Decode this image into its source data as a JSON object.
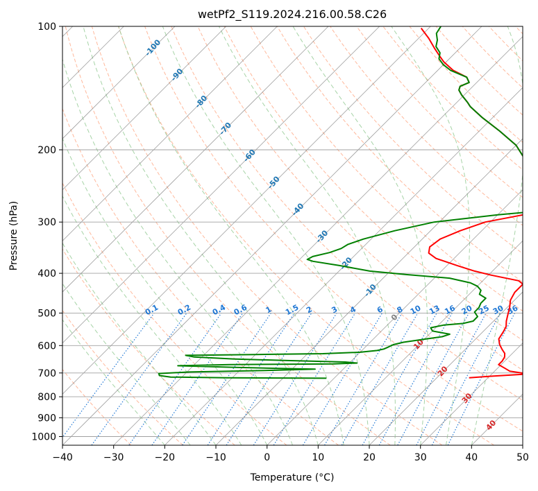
{
  "chart_data": {
    "type": "line",
    "chart_kind": "skew-T log-P",
    "title": "wetPf2_S119.2024.216.00.58.C26",
    "xlabel": "Temperature (°C)",
    "ylabel": "Pressure (hPa)",
    "xlim": [
      -40,
      50
    ],
    "ylim": [
      1050,
      100
    ],
    "y_scale": "log",
    "x_ticks": [
      -40,
      -30,
      -20,
      -10,
      0,
      10,
      20,
      30,
      40,
      50
    ],
    "y_ticks": [
      100,
      200,
      300,
      400,
      500,
      600,
      700,
      800,
      900,
      1000
    ],
    "grid": true,
    "isotherm_labels": [
      -100,
      -90,
      -80,
      -70,
      -60,
      -50,
      -40,
      -30,
      -20,
      -10,
      0,
      10,
      20,
      30,
      40
    ],
    "mixing_ratio_labels": [
      "0.1",
      "0.2",
      "0.4",
      "0.6",
      "1",
      "1.5",
      "2",
      "3",
      "4",
      "6",
      "8",
      "10",
      "13",
      "16",
      "20",
      "25",
      "30",
      "36"
    ],
    "colors": {
      "temperature": "#ff0000",
      "dewpoint": "#008000",
      "dry_adiabat": "#ffa07a",
      "moist_adiabat": "#90c890",
      "mixing_ratio": "#1f77d4",
      "isotherm": "#808080",
      "isotherm_label_cold": "#1f77b4",
      "isotherm_label_zero": "#808080",
      "isotherm_label_warm": "#d62728"
    },
    "series": [
      {
        "key": "temperature",
        "color": "#ff0000",
        "points": [
          [
            26.3,
            719
          ],
          [
            30,
            713
          ],
          [
            37.2,
            704
          ],
          [
            33,
            693
          ],
          [
            31.5,
            682
          ],
          [
            29.5,
            668
          ],
          [
            29.5,
            654
          ],
          [
            29.2,
            640
          ],
          [
            28.5,
            627
          ],
          [
            27.2,
            613
          ],
          [
            25.8,
            597
          ],
          [
            24.5,
            578
          ],
          [
            24.0,
            555
          ],
          [
            23.5,
            539
          ],
          [
            22.5,
            523
          ],
          [
            21.5,
            504
          ],
          [
            20.5,
            485
          ],
          [
            19.2,
            465
          ],
          [
            18.5,
            445
          ],
          [
            18.5,
            425
          ],
          [
            17.0,
            417
          ],
          [
            14.5,
            412
          ],
          [
            10.5,
            404
          ],
          [
            6.5,
            395
          ],
          [
            2.0,
            383
          ],
          [
            -3.5,
            368
          ],
          [
            -6.0,
            357
          ],
          [
            -7.0,
            345
          ],
          [
            -6.5,
            330
          ],
          [
            -4.2,
            315
          ],
          [
            -1.0,
            300
          ],
          [
            5.0,
            288
          ],
          [
            10.0,
            280
          ],
          [
            11.0,
            276
          ],
          [
            11.5,
            271
          ],
          [
            10.5,
            264
          ],
          [
            8.5,
            257
          ],
          [
            6.0,
            250
          ],
          [
            2.5,
            241
          ],
          [
            -0.5,
            232
          ],
          [
            -2.8,
            222
          ],
          [
            -5.5,
            211
          ],
          [
            -10.0,
            195
          ],
          [
            -16.0,
            180
          ],
          [
            -22.0,
            167
          ],
          [
            -26.5,
            157
          ],
          [
            -28.0,
            153
          ],
          [
            -30.5,
            147
          ],
          [
            -32.0,
            143
          ],
          [
            -32.5,
            140
          ],
          [
            -31.5,
            137
          ],
          [
            -33.0,
            133
          ],
          [
            -37.0,
            128
          ],
          [
            -40.5,
            122
          ],
          [
            -42.5,
            118
          ],
          [
            -45.0,
            113
          ],
          [
            -48.0,
            107
          ],
          [
            -51.5,
            101
          ]
        ]
      },
      {
        "key": "dewpoint",
        "color": "#008000",
        "points": [
          [
            -1.5,
            721
          ],
          [
            -21,
            719
          ],
          [
            -32.2,
            716
          ],
          [
            -34.7,
            710
          ],
          [
            -35.2,
            702
          ],
          [
            -29.5,
            696
          ],
          [
            -15.0,
            690
          ],
          [
            -5.5,
            685
          ],
          [
            -11.0,
            683
          ],
          [
            -22.0,
            678
          ],
          [
            -33.0,
            672
          ],
          [
            -23.0,
            668
          ],
          [
            -3.0,
            665
          ],
          [
            1.5,
            662
          ],
          [
            -1.0,
            658
          ],
          [
            -12.0,
            653
          ],
          [
            -23.5,
            647
          ],
          [
            -31.5,
            640
          ],
          [
            -33.5,
            634
          ],
          [
            -20.0,
            631
          ],
          [
            -7.0,
            628
          ],
          [
            0.0,
            623
          ],
          [
            3.0,
            617
          ],
          [
            4.0,
            612
          ],
          [
            4.5,
            605
          ],
          [
            5.0,
            597
          ],
          [
            6.5,
            589
          ],
          [
            10.0,
            579
          ],
          [
            13.0,
            571
          ],
          [
            14.0,
            563
          ],
          [
            10.0,
            553
          ],
          [
            9.0,
            543
          ],
          [
            11.0,
            535
          ],
          [
            14.5,
            530
          ],
          [
            16.0,
            523
          ],
          [
            16.0,
            510
          ],
          [
            14.5,
            497
          ],
          [
            14.5,
            485
          ],
          [
            14.0,
            473
          ],
          [
            14.0,
            460
          ],
          [
            12.0,
            450
          ],
          [
            11.5,
            440
          ],
          [
            10.0,
            430
          ],
          [
            8.0,
            422
          ],
          [
            3.0,
            411
          ],
          [
            -6.0,
            403
          ],
          [
            -14.0,
            395
          ],
          [
            -21.0,
            383
          ],
          [
            -27.0,
            374
          ],
          [
            -28.5,
            370
          ],
          [
            -28.0,
            364
          ],
          [
            -25.5,
            356
          ],
          [
            -24.0,
            348
          ],
          [
            -23.5,
            340
          ],
          [
            -21.5,
            330
          ],
          [
            -17.0,
            315
          ],
          [
            -11.0,
            300
          ],
          [
            0.0,
            288
          ],
          [
            10.0,
            280
          ],
          [
            8.0,
            276
          ],
          [
            6.0,
            270
          ],
          [
            4.5,
            262
          ],
          [
            2.5,
            252
          ],
          [
            1.0,
            243
          ],
          [
            -1.5,
            232
          ],
          [
            -3.5,
            222
          ],
          [
            -5.5,
            211
          ],
          [
            -10.0,
            195
          ],
          [
            -16.0,
            180
          ],
          [
            -22.0,
            167
          ],
          [
            -26.5,
            157
          ],
          [
            -28.0,
            153
          ],
          [
            -30.5,
            147
          ],
          [
            -32.0,
            143
          ],
          [
            -32.5,
            140
          ],
          [
            -31.5,
            137
          ],
          [
            -33.0,
            133
          ],
          [
            -37.5,
            128
          ],
          [
            -40.0,
            124
          ],
          [
            -42.0,
            120
          ],
          [
            -43.0,
            116
          ],
          [
            -45.0,
            112
          ],
          [
            -46.0,
            108
          ],
          [
            -47.5,
            104
          ],
          [
            -48.0,
            100
          ]
        ]
      }
    ]
  }
}
